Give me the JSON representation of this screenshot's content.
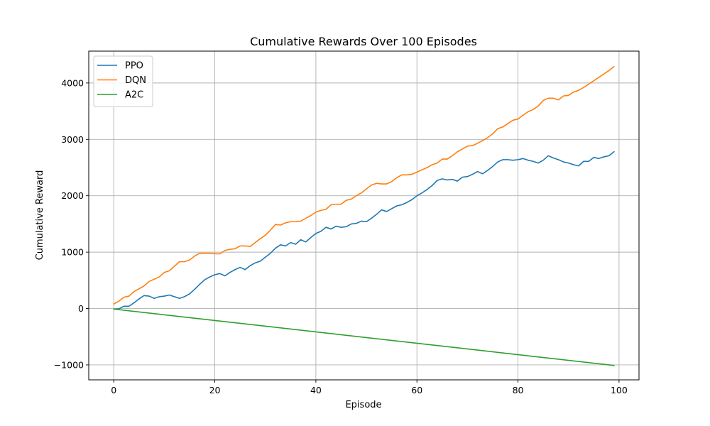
{
  "chart_data": {
    "type": "line",
    "title": "Cumulative Rewards Over 100 Episodes",
    "xlabel": "Episode",
    "ylabel": "Cumulative Reward",
    "xlim": [
      -4.95,
      103.95
    ],
    "ylim": [
      -1265,
      4565
    ],
    "xticks": [
      0,
      20,
      40,
      60,
      80,
      100
    ],
    "yticks": [
      -1000,
      0,
      1000,
      2000,
      3000,
      4000
    ],
    "ytick_labels": [
      "−1000",
      "0",
      "1000",
      "2000",
      "3000",
      "4000"
    ],
    "grid": true,
    "legend_position": "top-left",
    "series": [
      {
        "name": "PPO",
        "color": "#1f77b4",
        "x": [
          0,
          1,
          2,
          3,
          4,
          5,
          6,
          7,
          8,
          9,
          10,
          11,
          12,
          13,
          14,
          15,
          16,
          17,
          18,
          19,
          20,
          21,
          22,
          23,
          24,
          25,
          26,
          27,
          28,
          29,
          30,
          31,
          32,
          33,
          34,
          35,
          36,
          37,
          38,
          39,
          40,
          41,
          42,
          43,
          44,
          45,
          46,
          47,
          48,
          49,
          50,
          51,
          52,
          53,
          54,
          55,
          56,
          57,
          58,
          59,
          60,
          61,
          62,
          63,
          64,
          65,
          66,
          67,
          68,
          69,
          70,
          71,
          72,
          73,
          74,
          75,
          76,
          77,
          78,
          79,
          80,
          81,
          82,
          83,
          84,
          85,
          86,
          87,
          88,
          89,
          90,
          91,
          92,
          93,
          94,
          95,
          96,
          97,
          98,
          99
        ],
        "y": [
          -10,
          -5,
          40,
          40,
          100,
          170,
          230,
          220,
          180,
          210,
          220,
          240,
          210,
          180,
          210,
          260,
          340,
          430,
          510,
          560,
          600,
          620,
          580,
          640,
          690,
          730,
          690,
          760,
          810,
          840,
          910,
          980,
          1070,
          1130,
          1110,
          1170,
          1140,
          1220,
          1180,
          1260,
          1330,
          1370,
          1440,
          1410,
          1460,
          1440,
          1450,
          1500,
          1510,
          1550,
          1540,
          1600,
          1670,
          1750,
          1720,
          1770,
          1820,
          1840,
          1880,
          1930,
          2000,
          2050,
          2110,
          2180,
          2270,
          2300,
          2280,
          2290,
          2260,
          2330,
          2340,
          2380,
          2430,
          2390,
          2450,
          2520,
          2600,
          2640,
          2640,
          2630,
          2640,
          2660,
          2630,
          2610,
          2580,
          2630,
          2710,
          2670,
          2640,
          2600,
          2580,
          2550,
          2530,
          2610,
          2610,
          2680,
          2660,
          2690,
          2710,
          2780
        ]
      },
      {
        "name": "DQN",
        "color": "#ff7f0e",
        "x": [
          0,
          1,
          2,
          3,
          4,
          5,
          6,
          7,
          8,
          9,
          10,
          11,
          12,
          13,
          14,
          15,
          16,
          17,
          18,
          19,
          20,
          21,
          22,
          23,
          24,
          25,
          26,
          27,
          28,
          29,
          30,
          31,
          32,
          33,
          34,
          35,
          36,
          37,
          38,
          39,
          40,
          41,
          42,
          43,
          44,
          45,
          46,
          47,
          48,
          49,
          50,
          51,
          52,
          53,
          54,
          55,
          56,
          57,
          58,
          59,
          60,
          61,
          62,
          63,
          64,
          65,
          66,
          67,
          68,
          69,
          70,
          71,
          72,
          73,
          74,
          75,
          76,
          77,
          78,
          79,
          80,
          81,
          82,
          83,
          84,
          85,
          86,
          87,
          88,
          89,
          90,
          91,
          92,
          93,
          94,
          95,
          96,
          97,
          98,
          99
        ],
        "y": [
          80,
          130,
          200,
          220,
          300,
          350,
          400,
          480,
          520,
          560,
          640,
          670,
          750,
          830,
          830,
          860,
          930,
          980,
          980,
          980,
          970,
          970,
          1030,
          1050,
          1060,
          1110,
          1110,
          1100,
          1170,
          1240,
          1300,
          1390,
          1490,
          1480,
          1520,
          1540,
          1540,
          1550,
          1600,
          1650,
          1710,
          1740,
          1760,
          1840,
          1850,
          1850,
          1920,
          1940,
          2000,
          2050,
          2120,
          2190,
          2220,
          2210,
          2210,
          2250,
          2320,
          2370,
          2370,
          2380,
          2420,
          2460,
          2500,
          2550,
          2580,
          2650,
          2650,
          2710,
          2780,
          2830,
          2880,
          2890,
          2930,
          2980,
          3030,
          3100,
          3190,
          3220,
          3280,
          3340,
          3360,
          3430,
          3490,
          3530,
          3590,
          3690,
          3730,
          3730,
          3700,
          3770,
          3780,
          3840,
          3870,
          3920,
          3980,
          4040,
          4100,
          4160,
          4220,
          4290
        ]
      },
      {
        "name": "A2C",
        "color": "#2ca02c",
        "x": [
          0,
          99
        ],
        "y": [
          -10,
          -1010
        ]
      }
    ]
  }
}
